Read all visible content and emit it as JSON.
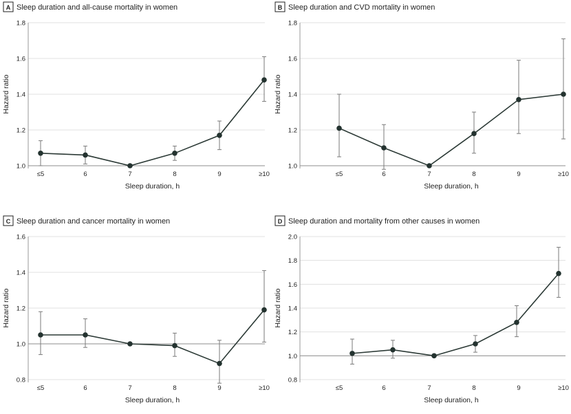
{
  "chart_data": [
    {
      "type": "line",
      "letter": "A",
      "title": "Sleep duration and all-cause mortality in women",
      "xlabel": "Sleep duration, h",
      "ylabel": "Hazard ratio",
      "categories": [
        "≤5",
        "6",
        "7",
        "8",
        "9",
        "≥10"
      ],
      "x": [
        5,
        6,
        7,
        8,
        9,
        10
      ],
      "values": [
        1.07,
        1.06,
        1.0,
        1.07,
        1.17,
        1.48
      ],
      "ci_lower": [
        1.0,
        1.01,
        1.0,
        1.03,
        1.09,
        1.36
      ],
      "ci_upper": [
        1.14,
        1.11,
        1.0,
        1.11,
        1.25,
        1.61
      ],
      "ylim": [
        1.0,
        1.8
      ],
      "yticks": [
        1.0,
        1.2,
        1.4,
        1.6,
        1.8
      ],
      "ytick_labels": [
        "1.0",
        "1.2",
        "1.4",
        "1.6",
        "1.8"
      ],
      "reference_line": 1.0
    },
    {
      "type": "line",
      "letter": "B",
      "title": "Sleep duration and CVD mortality in women",
      "xlabel": "Sleep duration, h",
      "ylabel": "Hazard ratio",
      "categories": [
        "≤5",
        "6",
        "7",
        "8",
        "9",
        "≥10"
      ],
      "x": [
        5,
        6,
        7,
        8,
        9,
        10
      ],
      "values": [
        1.21,
        1.1,
        1.0,
        1.18,
        1.37,
        1.4
      ],
      "ci_lower": [
        1.05,
        0.98,
        1.0,
        1.07,
        1.18,
        1.15
      ],
      "ci_upper": [
        1.4,
        1.23,
        1.0,
        1.3,
        1.59,
        1.71
      ],
      "ylim": [
        1.0,
        1.8
      ],
      "yticks": [
        1.0,
        1.2,
        1.4,
        1.6,
        1.8
      ],
      "ytick_labels": [
        "1.0",
        "1.2",
        "1.4",
        "1.6",
        "1.8"
      ],
      "reference_line": 1.0
    },
    {
      "type": "line",
      "letter": "C",
      "title": "Sleep duration and cancer mortality in women",
      "xlabel": "Sleep duration, h",
      "ylabel": "Hazard ratio",
      "categories": [
        "≤5",
        "6",
        "7",
        "8",
        "9",
        "≥10"
      ],
      "x": [
        5,
        6,
        7,
        8,
        9,
        10
      ],
      "values": [
        1.05,
        1.05,
        1.0,
        0.99,
        0.89,
        1.19
      ],
      "ci_lower": [
        0.94,
        0.98,
        1.0,
        0.93,
        0.78,
        1.01
      ],
      "ci_upper": [
        1.18,
        1.14,
        1.0,
        1.06,
        1.02,
        1.41
      ],
      "ylim": [
        0.8,
        1.6
      ],
      "yticks": [
        0.8,
        1.0,
        1.2,
        1.4,
        1.6
      ],
      "ytick_labels": [
        "0.8",
        "1.0",
        "1.2",
        "1.4",
        "1.6"
      ],
      "reference_line": 1.0
    },
    {
      "type": "line",
      "letter": "D",
      "title": "Sleep duration and mortality from other causes in women",
      "xlabel": "Sleep duration, h",
      "ylabel": "Hazard ratio",
      "categories": [
        "≤5",
        "6",
        "7",
        "8",
        "9",
        "≥10"
      ],
      "x": [
        5,
        6,
        7,
        8,
        9,
        10
      ],
      "values": [
        1.02,
        1.05,
        1.0,
        1.1,
        1.28,
        1.69
      ],
      "ci_lower": [
        0.93,
        0.98,
        1.0,
        1.03,
        1.16,
        1.49
      ],
      "ci_upper": [
        1.14,
        1.13,
        1.0,
        1.17,
        1.42,
        1.91
      ],
      "ylim": [
        0.8,
        2.0
      ],
      "yticks": [
        0.8,
        1.0,
        1.2,
        1.4,
        1.6,
        1.8,
        2.0
      ],
      "ytick_labels": [
        "0.8",
        "1.0",
        "1.2",
        "1.4",
        "1.6",
        "1.8",
        "2.0"
      ],
      "reference_line": 1.0
    }
  ],
  "style": {
    "line_color": "#2c3a36",
    "marker_color": "#243330",
    "errorbar_color": "#7a7a7a",
    "gridline_color": "#e0e0e0",
    "refline_color": "#8c8c8c",
    "letter_box_color": "#1f1f1f",
    "text_color": "#1f1f1f"
  }
}
